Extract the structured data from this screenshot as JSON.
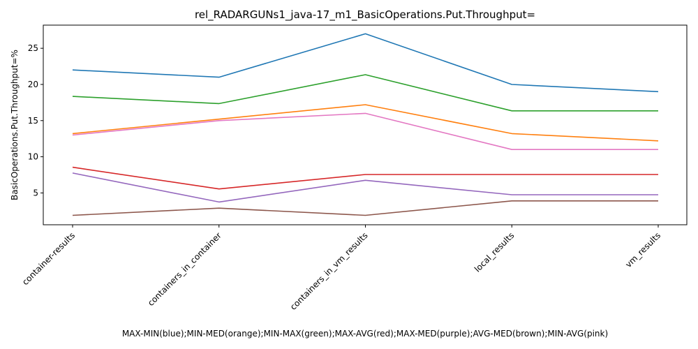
{
  "chart_data": {
    "type": "line",
    "title": "rel_RADARGUNs1_java-17_m1_BasicOperations.Put.Throughput=",
    "xlabel": "MAX-MIN(blue);MIN-MED(orange);MIN-MAX(green);MAX-AVG(red);MAX-MED(purple);AVG-MED(brown);MIN-AVG(pink)",
    "ylabel": "BasicOperations.Put.Throughput=%",
    "categories": [
      "container-results",
      "containers_in_container",
      "containers_in_vm_results",
      "local_results",
      "vm_results"
    ],
    "ylim": [
      0.6,
      28.2
    ],
    "yticks": [
      5,
      10,
      15,
      20,
      25
    ],
    "grid": false,
    "series": [
      {
        "color": "#1f77b4",
        "values": [
          22.0,
          21.0,
          27.0,
          20.0,
          19.0
        ]
      },
      {
        "color": "#ff7f0e",
        "values": [
          13.2,
          15.2,
          17.2,
          13.2,
          12.2
        ]
      },
      {
        "color": "#2ca02c",
        "values": [
          18.35,
          17.35,
          21.35,
          16.35,
          16.35
        ]
      },
      {
        "color": "#d62728",
        "values": [
          8.55,
          5.55,
          7.55,
          7.55,
          7.55
        ]
      },
      {
        "color": "#9467bd",
        "values": [
          7.75,
          3.75,
          6.75,
          4.75,
          4.75
        ]
      },
      {
        "color": "#8c564b",
        "values": [
          1.9,
          2.9,
          1.9,
          3.9,
          3.9
        ]
      },
      {
        "color": "#e377c2",
        "values": [
          13.0,
          15.0,
          16.0,
          11.0,
          11.0
        ]
      }
    ]
  }
}
